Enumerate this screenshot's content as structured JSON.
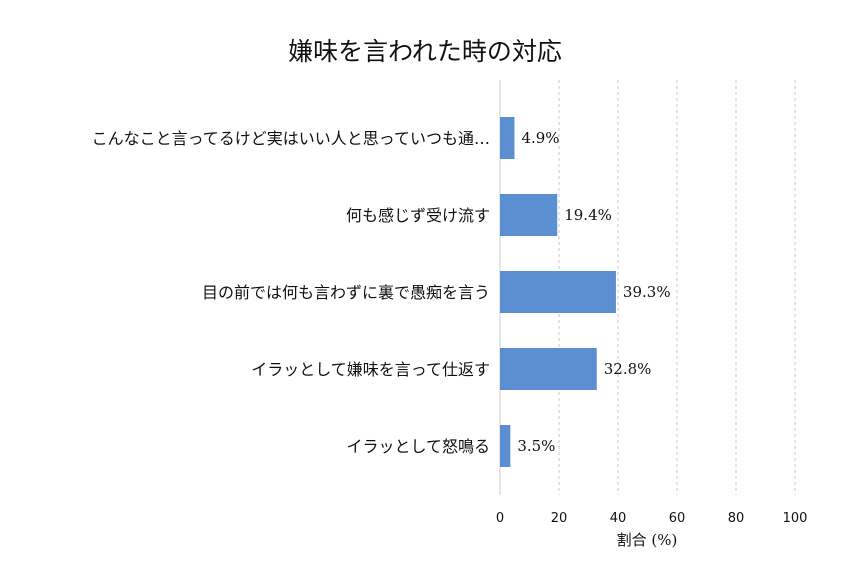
{
  "chart_data": {
    "type": "bar",
    "orientation": "horizontal",
    "title": "嫌味を言われた時の対応",
    "xlabel": "割合 (%)",
    "ylabel": "",
    "xlim": [
      0,
      100
    ],
    "xticks": [
      0,
      20,
      40,
      60,
      80,
      100
    ],
    "grid": "x-dashed",
    "bar_color": "#5b8fd1",
    "categories": [
      "こんなこと言ってるけど実はいい人と思っていつも通…",
      "何も感じず受け流す",
      "目の前では何も言わずに裏で愚痴を言う",
      "イラッとして嫌味を言って仕返す",
      "イラッとして怒鳴る"
    ],
    "values": [
      4.9,
      19.4,
      39.3,
      32.8,
      3.5
    ],
    "value_labels": [
      "4.9%",
      "19.4%",
      "39.3%",
      "32.8%",
      "3.5%"
    ]
  }
}
